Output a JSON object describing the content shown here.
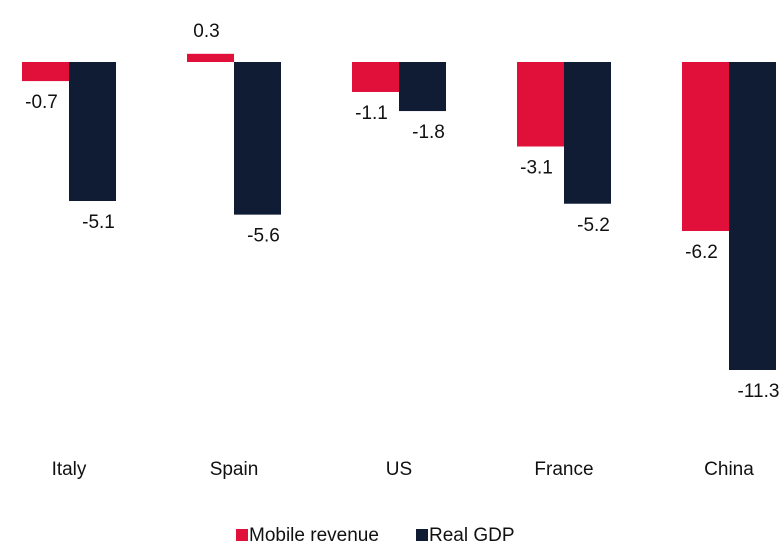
{
  "chart_data": {
    "type": "bar",
    "categories": [
      "Italy",
      "Spain",
      "US",
      "France",
      "China"
    ],
    "series": [
      {
        "name": "Mobile revenue",
        "color": "#e0103a",
        "values": [
          -0.7,
          0.3,
          -1.1,
          -3.1,
          -6.2
        ]
      },
      {
        "name": "Real GDP",
        "color": "#0f1c33",
        "values": [
          -5.1,
          -5.6,
          -1.8,
          -5.2,
          -11.3
        ]
      }
    ],
    "legend": "bottom"
  }
}
